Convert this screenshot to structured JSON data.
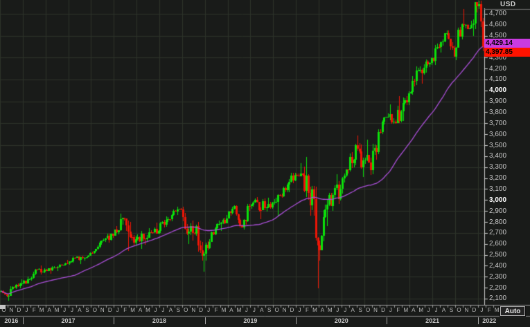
{
  "window": {
    "currency": "USD",
    "auto_button_label": "Auto"
  },
  "y_axis": {
    "tick_min": 2100,
    "tick_max": 4700,
    "tick_step": 100,
    "bold_ticks": [
      3000,
      4000
    ],
    "tick_color": "#c8c8c8",
    "bold_tick_color": "#ffffff"
  },
  "price_labels": {
    "ma": {
      "text": "4,429.14",
      "value": 4429.14,
      "bg": "#c93be0"
    },
    "last": {
      "text": "4,397.85",
      "value": 4397.85,
      "bg": "#ff1300"
    }
  },
  "x_axis": {
    "month_letters": [
      "O",
      "N",
      "D",
      "J",
      "F",
      "M",
      "A",
      "M",
      "J",
      "J",
      "A",
      "S",
      "O",
      "N",
      "D",
      "J",
      "F",
      "M",
      "A",
      "M",
      "J",
      "J",
      "A",
      "S",
      "O",
      "N",
      "D",
      "J",
      "F",
      "M",
      "A",
      "M",
      "J",
      "J",
      "A",
      "S",
      "O",
      "N",
      "D",
      "J",
      "F",
      "M",
      "A",
      "M",
      "J",
      "J",
      "A",
      "S",
      "O",
      "N",
      "D",
      "J",
      "F",
      "M",
      "A",
      "M",
      "J",
      "J",
      "A",
      "S",
      "O",
      "N",
      "D",
      "J",
      "F",
      "M"
    ],
    "years": [
      {
        "label": "2016",
        "start_month": 0,
        "end_month": 3
      },
      {
        "label": "2017",
        "start_month": 3,
        "end_month": 15
      },
      {
        "label": "2018",
        "start_month": 15,
        "end_month": 27
      },
      {
        "label": "2019",
        "start_month": 27,
        "end_month": 39
      },
      {
        "label": "2020",
        "start_month": 39,
        "end_month": 51
      },
      {
        "label": "2021",
        "start_month": 51,
        "end_month": 63
      },
      {
        "label": "2022",
        "start_month": 63,
        "end_month": 66
      }
    ],
    "year_separators_at_month": [
      3,
      15,
      27,
      39,
      51,
      63
    ]
  },
  "chart_data": {
    "type": "candlestick",
    "period": "weekly",
    "ylim": [
      2043,
      4825
    ],
    "grid": {
      "h_line_values_step": 200,
      "h_line_start": 2100,
      "v_line_every_months": 3
    },
    "up_color": "#0be10b",
    "down_color": "#ef1606",
    "grid_color": "#2d3329",
    "bg_color": "#191b19",
    "moving_average": {
      "type": "sma",
      "window_weeks": 40,
      "color": "#aa4fd8",
      "last_value": 4429.14
    },
    "last_price": 4397.85,
    "monthly_ohlc_columns": [
      "month",
      "open",
      "high",
      "low",
      "close"
    ],
    "monthly_ohlc": [
      [
        "2016-10",
        2161,
        2175,
        2114,
        2126
      ],
      [
        "2016-11",
        2126,
        2214,
        2084,
        2199
      ],
      [
        "2016-12",
        2199,
        2278,
        2187,
        2239
      ],
      [
        "2017-01",
        2239,
        2301,
        2234,
        2279
      ],
      [
        "2017-02",
        2279,
        2371,
        2267,
        2364
      ],
      [
        "2017-03",
        2364,
        2401,
        2322,
        2363
      ],
      [
        "2017-04",
        2363,
        2398,
        2329,
        2384
      ],
      [
        "2017-05",
        2384,
        2418,
        2353,
        2412
      ],
      [
        "2017-06",
        2412,
        2454,
        2406,
        2423
      ],
      [
        "2017-07",
        2423,
        2484,
        2408,
        2470
      ],
      [
        "2017-08",
        2470,
        2491,
        2418,
        2472
      ],
      [
        "2017-09",
        2472,
        2520,
        2447,
        2519
      ],
      [
        "2017-10",
        2519,
        2583,
        2510,
        2575
      ],
      [
        "2017-11",
        2575,
        2658,
        2557,
        2648
      ],
      [
        "2017-12",
        2648,
        2695,
        2606,
        2674
      ],
      [
        "2018-01",
        2674,
        2873,
        2674,
        2824
      ],
      [
        "2018-02",
        2824,
        2835,
        2533,
        2714
      ],
      [
        "2018-03",
        2714,
        2802,
        2586,
        2641
      ],
      [
        "2018-04",
        2641,
        2717,
        2554,
        2648
      ],
      [
        "2018-05",
        2648,
        2742,
        2595,
        2705
      ],
      [
        "2018-06",
        2705,
        2791,
        2692,
        2718
      ],
      [
        "2018-07",
        2718,
        2848,
        2699,
        2816
      ],
      [
        "2018-08",
        2816,
        2916,
        2796,
        2902
      ],
      [
        "2018-09",
        2902,
        2941,
        2864,
        2914
      ],
      [
        "2018-10",
        2914,
        2940,
        2603,
        2712
      ],
      [
        "2018-11",
        2712,
        2815,
        2631,
        2760
      ],
      [
        "2018-12",
        2760,
        2800,
        2347,
        2507
      ],
      [
        "2019-01",
        2507,
        2709,
        2444,
        2704
      ],
      [
        "2019-02",
        2704,
        2813,
        2682,
        2784
      ],
      [
        "2019-03",
        2784,
        2860,
        2722,
        2834
      ],
      [
        "2019-04",
        2834,
        2949,
        2830,
        2946
      ],
      [
        "2019-05",
        2946,
        2954,
        2751,
        2752
      ],
      [
        "2019-06",
        2752,
        2964,
        2729,
        2942
      ],
      [
        "2019-07",
        2942,
        3028,
        2914,
        2980
      ],
      [
        "2019-08",
        2980,
        3014,
        2822,
        2926
      ],
      [
        "2019-09",
        2926,
        3022,
        2892,
        2977
      ],
      [
        "2019-10",
        2977,
        3050,
        2856,
        3038
      ],
      [
        "2019-11",
        3038,
        3154,
        3023,
        3141
      ],
      [
        "2019-12",
        3141,
        3248,
        3070,
        3231
      ],
      [
        "2020-01",
        3231,
        3338,
        3215,
        3226
      ],
      [
        "2020-02",
        3226,
        3393,
        2856,
        2954
      ],
      [
        "2020-03",
        2954,
        3131,
        2192,
        2585
      ],
      [
        "2020-04",
        2585,
        2955,
        2448,
        2912
      ],
      [
        "2020-05",
        2912,
        3068,
        2766,
        3044
      ],
      [
        "2020-06",
        3044,
        3233,
        2966,
        3100
      ],
      [
        "2020-07",
        3100,
        3280,
        3058,
        3271
      ],
      [
        "2020-08",
        3271,
        3514,
        3260,
        3500
      ],
      [
        "2020-09",
        3500,
        3588,
        3209,
        3363
      ],
      [
        "2020-10",
        3363,
        3550,
        3234,
        3270
      ],
      [
        "2020-11",
        3270,
        3645,
        3233,
        3622
      ],
      [
        "2020-12",
        3622,
        3760,
        3596,
        3756
      ],
      [
        "2021-01",
        3756,
        3870,
        3694,
        3714
      ],
      [
        "2021-02",
        3714,
        3950,
        3700,
        3811
      ],
      [
        "2021-03",
        3811,
        3994,
        3723,
        3973
      ],
      [
        "2021-04",
        3973,
        4218,
        3960,
        4181
      ],
      [
        "2021-05",
        4181,
        4238,
        4057,
        4204
      ],
      [
        "2021-06",
        4204,
        4302,
        4164,
        4297
      ],
      [
        "2021-07",
        4297,
        4429,
        4233,
        4395
      ],
      [
        "2021-08",
        4395,
        4545,
        4347,
        4523
      ],
      [
        "2021-09",
        4523,
        4546,
        4306,
        4308
      ],
      [
        "2021-10",
        4308,
        4608,
        4278,
        4605
      ],
      [
        "2021-11",
        4605,
        4744,
        4560,
        4567
      ],
      [
        "2021-12",
        4567,
        4808,
        4495,
        4766
      ],
      [
        "2022-01",
        4766,
        4818,
        4360,
        4397.85
      ]
    ],
    "last_month_weeks": 3
  }
}
